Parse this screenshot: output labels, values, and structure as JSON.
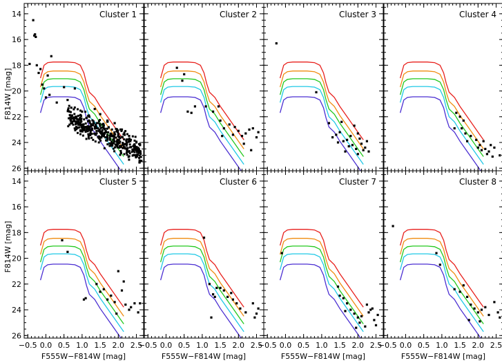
{
  "chart_data": {
    "type": "scatter",
    "layout": "2 rows x 4 columns of panels with shared axes",
    "xlabel": "F555W−F814W [mag]",
    "ylabel": "F814W [mag]",
    "xlim": [
      -0.6,
      2.7
    ],
    "ylim": [
      26.2,
      13.2
    ],
    "y_inverted": true,
    "xticks": [
      -0.5,
      0.0,
      0.5,
      1.0,
      1.5,
      2.0,
      2.5
    ],
    "xtick_labels": [
      "−0.5",
      "0.0",
      "0.5",
      "1.0",
      "1.5",
      "2.0",
      "2.5"
    ],
    "yticks": [
      14,
      16,
      18,
      20,
      22,
      24,
      26
    ],
    "ytick_labels": [
      "14",
      "16",
      "18",
      "20",
      "22",
      "24",
      "26"
    ],
    "isochrone_colors": [
      "#e8201c",
      "#f08c10",
      "#22c81e",
      "#1ec8e6",
      "#4a2ed2"
    ],
    "isochrone_shape": {
      "x": [
        -0.15,
        -0.05,
        0.05,
        0.2,
        0.4,
        0.6,
        0.8,
        0.95,
        1.05,
        1.12,
        1.2,
        1.35,
        1.5,
        1.7,
        1.9,
        2.05,
        2.15
      ],
      "dy": [
        1.2,
        0.2,
        0.0,
        -0.05,
        -0.05,
        -0.05,
        0.0,
        0.2,
        0.8,
        1.6,
        2.3,
        2.7,
        3.4,
        4.2,
        5.0,
        5.6,
        6.0
      ]
    },
    "isochrone_offsets": [
      17.8,
      18.5,
      19.1,
      19.7,
      20.5
    ],
    "points_marker": "filled black square",
    "panels": [
      {
        "title": "Cluster 1",
        "points": [
          [
            -0.35,
            14.5
          ],
          [
            -0.3,
            15.6
          ],
          [
            -0.28,
            15.8
          ],
          [
            -0.32,
            15.7
          ],
          [
            -0.45,
            17.9
          ],
          [
            -0.25,
            18.0
          ],
          [
            -0.2,
            18.6
          ],
          [
            -0.15,
            18.3
          ],
          [
            -0.1,
            19.5
          ],
          [
            -0.05,
            19.8
          ],
          [
            0.0,
            20.5
          ],
          [
            0.1,
            20.3
          ],
          [
            0.05,
            18.8
          ],
          [
            0.15,
            17.3
          ],
          [
            0.3,
            20.9
          ],
          [
            0.5,
            19.7
          ],
          [
            0.6,
            20.7
          ],
          [
            0.8,
            19.8
          ],
          [
            1.0,
            21.6
          ],
          [
            1.2,
            22.0
          ],
          [
            1.35,
            21.4
          ],
          [
            1.5,
            21.8
          ],
          [
            1.7,
            22.3
          ],
          [
            1.9,
            22.5
          ],
          [
            2.1,
            23.0
          ],
          [
            2.3,
            23.5
          ],
          [
            2.5,
            24.0
          ],
          [
            0.7,
            21.3
          ],
          [
            0.9,
            22.4
          ],
          [
            1.1,
            22.8
          ],
          [
            2.4,
            24.6
          ],
          [
            2.6,
            24.2
          ]
        ],
        "dense_cloud": {
          "count": 420,
          "x_range": [
            0.6,
            2.65
          ],
          "y_center": [
            22.0,
            24.8
          ],
          "y_spread": 0.55
        }
      },
      {
        "title": "Cluster 2",
        "points": [
          [
            0.3,
            18.2
          ],
          [
            0.5,
            18.7
          ],
          [
            0.8,
            21.2
          ],
          [
            0.6,
            21.6
          ],
          [
            0.7,
            21.7
          ],
          [
            1.1,
            21.2
          ],
          [
            1.3,
            21.6
          ],
          [
            1.5,
            22.3
          ],
          [
            1.6,
            22.9
          ],
          [
            1.75,
            22.6
          ],
          [
            1.9,
            22.8
          ],
          [
            2.0,
            23.1
          ],
          [
            2.1,
            23.5
          ],
          [
            2.2,
            23.3
          ],
          [
            2.3,
            23.0
          ],
          [
            2.4,
            22.9
          ],
          [
            2.5,
            23.6
          ],
          [
            2.35,
            24.6
          ],
          [
            1.85,
            23.4
          ],
          [
            2.15,
            24.1
          ],
          [
            1.55,
            23.5
          ],
          [
            0.45,
            19.2
          ],
          [
            2.55,
            23.2
          ],
          [
            1.45,
            21.2
          ]
        ]
      },
      {
        "title": "Cluster 3",
        "points": [
          [
            -0.25,
            16.3
          ],
          [
            0.85,
            20.1
          ],
          [
            1.2,
            22.5
          ],
          [
            1.3,
            23.6
          ],
          [
            1.4,
            23.4
          ],
          [
            1.5,
            23.2
          ],
          [
            1.55,
            22.4
          ],
          [
            1.6,
            23.9
          ],
          [
            1.7,
            23.8
          ],
          [
            1.75,
            24.3
          ],
          [
            1.8,
            23.5
          ],
          [
            1.9,
            22.7
          ],
          [
            1.95,
            24.5
          ],
          [
            2.0,
            23.3
          ],
          [
            2.05,
            23.7
          ],
          [
            2.1,
            24.1
          ],
          [
            2.15,
            24.6
          ],
          [
            2.2,
            24.4
          ],
          [
            2.25,
            23.9
          ],
          [
            2.3,
            24.7
          ],
          [
            1.65,
            24.7
          ],
          [
            2.0,
            24.9
          ],
          [
            1.45,
            24.0
          ],
          [
            1.85,
            24.2
          ]
        ]
      },
      {
        "title": "Cluster 4",
        "points": [
          [
            1.4,
            21.7
          ],
          [
            1.5,
            22.0
          ],
          [
            1.6,
            22.3
          ],
          [
            1.65,
            23.3
          ],
          [
            1.8,
            23.5
          ],
          [
            1.95,
            23.8
          ],
          [
            2.05,
            24.2
          ],
          [
            2.1,
            24.6
          ],
          [
            2.2,
            24.5
          ],
          [
            2.25,
            24.9
          ],
          [
            2.3,
            24.7
          ],
          [
            2.4,
            25.1
          ],
          [
            2.45,
            24.4
          ],
          [
            2.6,
            25.0
          ],
          [
            1.7,
            23.9
          ],
          [
            2.0,
            24.4
          ],
          [
            2.15,
            23.9
          ],
          [
            1.35,
            22.9
          ],
          [
            1.55,
            22.9
          ],
          [
            2.35,
            24.2
          ]
        ]
      },
      {
        "title": "Cluster 5",
        "points": [
          [
            0.45,
            18.6
          ],
          [
            0.6,
            19.5
          ],
          [
            1.05,
            23.2
          ],
          [
            1.1,
            23.1
          ],
          [
            1.5,
            22.6
          ],
          [
            1.6,
            22.4
          ],
          [
            1.7,
            23.2
          ],
          [
            1.8,
            22.9
          ],
          [
            1.9,
            23.4
          ],
          [
            2.0,
            21.0
          ],
          [
            2.1,
            22.5
          ],
          [
            2.2,
            23.6
          ],
          [
            2.3,
            24.0
          ],
          [
            2.35,
            23.8
          ],
          [
            2.45,
            23.5
          ],
          [
            2.6,
            23.5
          ],
          [
            2.55,
            24.2
          ],
          [
            1.95,
            24.3
          ],
          [
            2.15,
            21.8
          ],
          [
            1.4,
            22.0
          ]
        ]
      },
      {
        "title": "Cluster 6",
        "points": [
          [
            1.05,
            18.4
          ],
          [
            1.2,
            22.0
          ],
          [
            1.3,
            22.8
          ],
          [
            1.4,
            22.3
          ],
          [
            1.5,
            22.3
          ],
          [
            1.6,
            22.5
          ],
          [
            1.7,
            23.0
          ],
          [
            1.8,
            22.7
          ],
          [
            1.95,
            23.5
          ],
          [
            2.05,
            23.9
          ],
          [
            2.2,
            24.2
          ],
          [
            2.4,
            23.5
          ],
          [
            2.45,
            24.6
          ],
          [
            2.5,
            24.3
          ],
          [
            2.55,
            23.9
          ],
          [
            1.25,
            24.6
          ],
          [
            1.35,
            23.0
          ],
          [
            1.85,
            23.2
          ]
        ]
      },
      {
        "title": "Cluster 7",
        "points": [
          [
            -0.1,
            19.6
          ],
          [
            1.45,
            22.2
          ],
          [
            1.5,
            22.9
          ],
          [
            1.6,
            23.1
          ],
          [
            1.7,
            23.5
          ],
          [
            1.8,
            24.0
          ],
          [
            1.9,
            24.3
          ],
          [
            2.0,
            24.6
          ],
          [
            2.05,
            25.0
          ],
          [
            2.1,
            24.5
          ],
          [
            2.2,
            25.3
          ],
          [
            2.3,
            24.2
          ],
          [
            2.4,
            23.9
          ],
          [
            2.45,
            24.8
          ],
          [
            2.5,
            25.2
          ],
          [
            2.55,
            24.4
          ],
          [
            1.65,
            24.1
          ],
          [
            2.25,
            23.6
          ],
          [
            1.95,
            25.4
          ],
          [
            2.35,
            24.0
          ]
        ]
      },
      {
        "title": "Cluster 8",
        "points": [
          [
            -0.35,
            17.5
          ],
          [
            0.85,
            19.6
          ],
          [
            0.95,
            20.5
          ],
          [
            1.35,
            22.4
          ],
          [
            1.5,
            22.6
          ],
          [
            1.6,
            22.1
          ],
          [
            1.7,
            23.0
          ],
          [
            1.8,
            23.6
          ],
          [
            1.9,
            23.9
          ],
          [
            2.0,
            24.2
          ],
          [
            2.1,
            24.0
          ],
          [
            2.2,
            23.8
          ],
          [
            2.3,
            24.4
          ],
          [
            2.45,
            23.4
          ],
          [
            2.55,
            24.2
          ],
          [
            2.6,
            24.6
          ],
          [
            1.75,
            24.8
          ],
          [
            2.05,
            24.9
          ]
        ]
      }
    ]
  }
}
